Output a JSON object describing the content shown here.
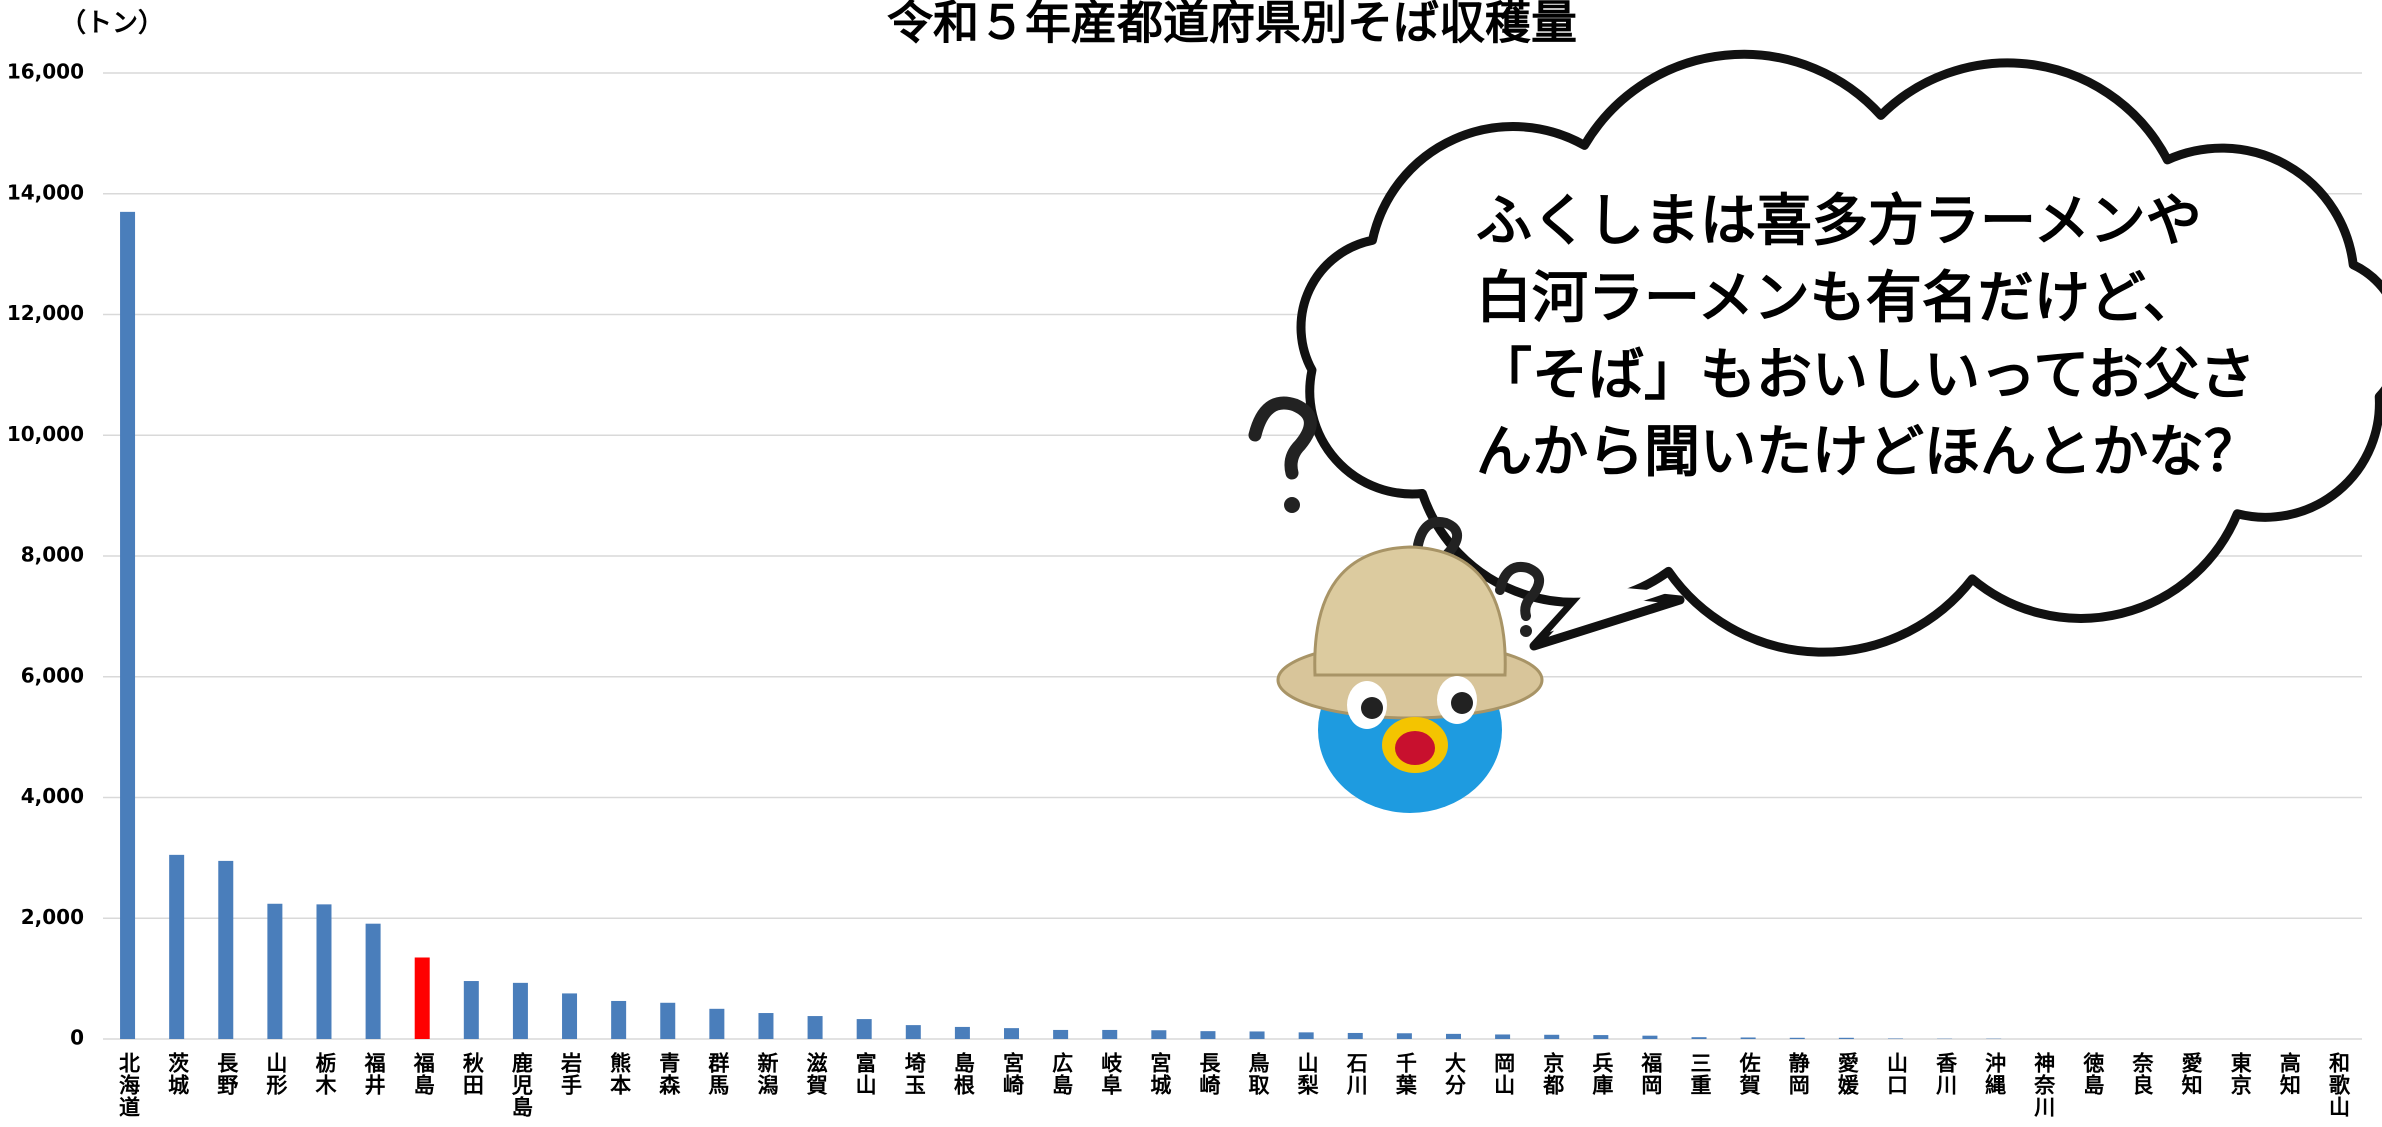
{
  "chart_data": {
    "type": "bar",
    "title": "令和５年産都道府県別そば収穫量",
    "y_label": "（トン）",
    "categories": [
      "北海道",
      "茨城",
      "長野",
      "山形",
      "栃木",
      "福井",
      "福島",
      "秋田",
      "鹿児島",
      "岩手",
      "熊本",
      "青森",
      "群馬",
      "新潟",
      "滋賀",
      "富山",
      "埼玉",
      "島根",
      "宮崎",
      "広島",
      "岐阜",
      "宮城",
      "長崎",
      "鳥取",
      "山梨",
      "石川",
      "千葉",
      "大分",
      "岡山",
      "京都",
      "兵庫",
      "福岡",
      "三重",
      "佐賀",
      "静岡",
      "愛媛",
      "山口",
      "香川",
      "沖縄",
      "神奈川",
      "徳島",
      "奈良",
      "愛知",
      "東京",
      "高知",
      "和歌山"
    ],
    "values": [
      13700,
      3050,
      2950,
      2240,
      2230,
      1910,
      1350,
      960,
      930,
      755,
      630,
      600,
      500,
      430,
      380,
      330,
      230,
      200,
      180,
      150,
      150,
      145,
      130,
      125,
      110,
      100,
      95,
      85,
      75,
      70,
      65,
      55,
      30,
      25,
      20,
      20,
      8,
      5,
      5,
      0,
      0,
      0,
      0,
      0,
      0,
      0
    ],
    "colors": [
      "#4a7ebb",
      "#4a7ebb",
      "#4a7ebb",
      "#4a7ebb",
      "#4a7ebb",
      "#4a7ebb",
      "#ff0000",
      "#4a7ebb",
      "#4a7ebb",
      "#4a7ebb",
      "#4a7ebb",
      "#4a7ebb",
      "#4a7ebb",
      "#4a7ebb",
      "#4a7ebb",
      "#4a7ebb",
      "#4a7ebb",
      "#4a7ebb",
      "#4a7ebb",
      "#4a7ebb",
      "#4a7ebb",
      "#4a7ebb",
      "#4a7ebb",
      "#4a7ebb",
      "#4a7ebb",
      "#4a7ebb",
      "#4a7ebb",
      "#4a7ebb",
      "#4a7ebb",
      "#4a7ebb",
      "#4a7ebb",
      "#4a7ebb",
      "#4a7ebb",
      "#4a7ebb",
      "#4a7ebb",
      "#4a7ebb",
      "#4a7ebb",
      "#4a7ebb",
      "#4a7ebb",
      "#4a7ebb",
      "#4a7ebb",
      "#4a7ebb",
      "#4a7ebb",
      "#4a7ebb",
      "#4a7ebb",
      "#4a7ebb"
    ],
    "ylim": [
      0,
      16000
    ],
    "yticks": [
      0,
      {
        "value": 2000,
        "label": "2,000"
      },
      {
        "value": 4000,
        "label": "4,000"
      },
      {
        "value": 6000,
        "label": "6,000"
      },
      {
        "value": 8000,
        "label": "8,000"
      },
      {
        "value": 10000,
        "label": "10,000"
      },
      {
        "value": 12000,
        "label": "12,000"
      },
      {
        "value": 14000,
        "label": "14,000"
      },
      {
        "value": 16000,
        "label": "16,000"
      }
    ],
    "grid": true,
    "annotation": [
      "ふくしまは喜多方ラーメンや",
      "白河ラーメンも有名だけど、",
      "「そば」もおいしいってお父さ",
      "んから聞いたけどほんとかな？"
    ]
  }
}
